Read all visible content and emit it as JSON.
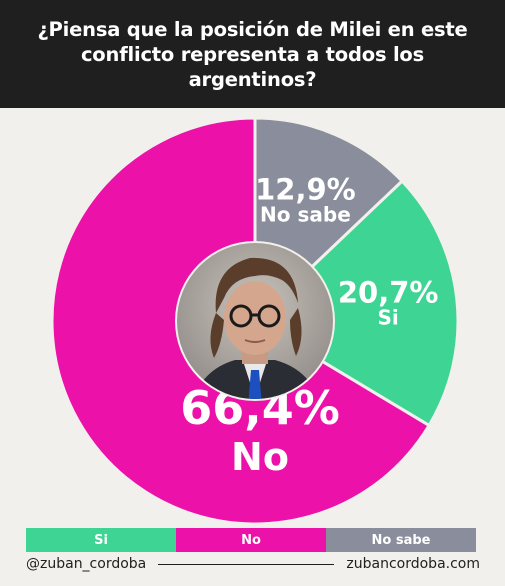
{
  "header": {
    "title_line1": "¿Piensa que la posición de Milei en este",
    "title_line2": "conflicto representa a todos los argentinos?"
  },
  "chart_data": {
    "type": "pie",
    "style": "donut",
    "slices": [
      {
        "label": "No sabe",
        "value": 12.9,
        "display": "12,9%",
        "color": "#8a8d9c"
      },
      {
        "label": "Si",
        "value": 20.7,
        "display": "20,7%",
        "color": "#3ed493"
      },
      {
        "label": "No",
        "value": 66.4,
        "display": "66,4%",
        "color": "#ec11a8"
      }
    ],
    "center_image": "portrait-photo",
    "legend_position": "bottom"
  },
  "legend": [
    {
      "label": "Si",
      "color": "#3ed493"
    },
    {
      "label": "No",
      "color": "#ec11a8"
    },
    {
      "label": "No sabe",
      "color": "#8a8d9c"
    }
  ],
  "footer": {
    "handle": "@zuban_cordoba",
    "website": "zubancordoba.com"
  }
}
